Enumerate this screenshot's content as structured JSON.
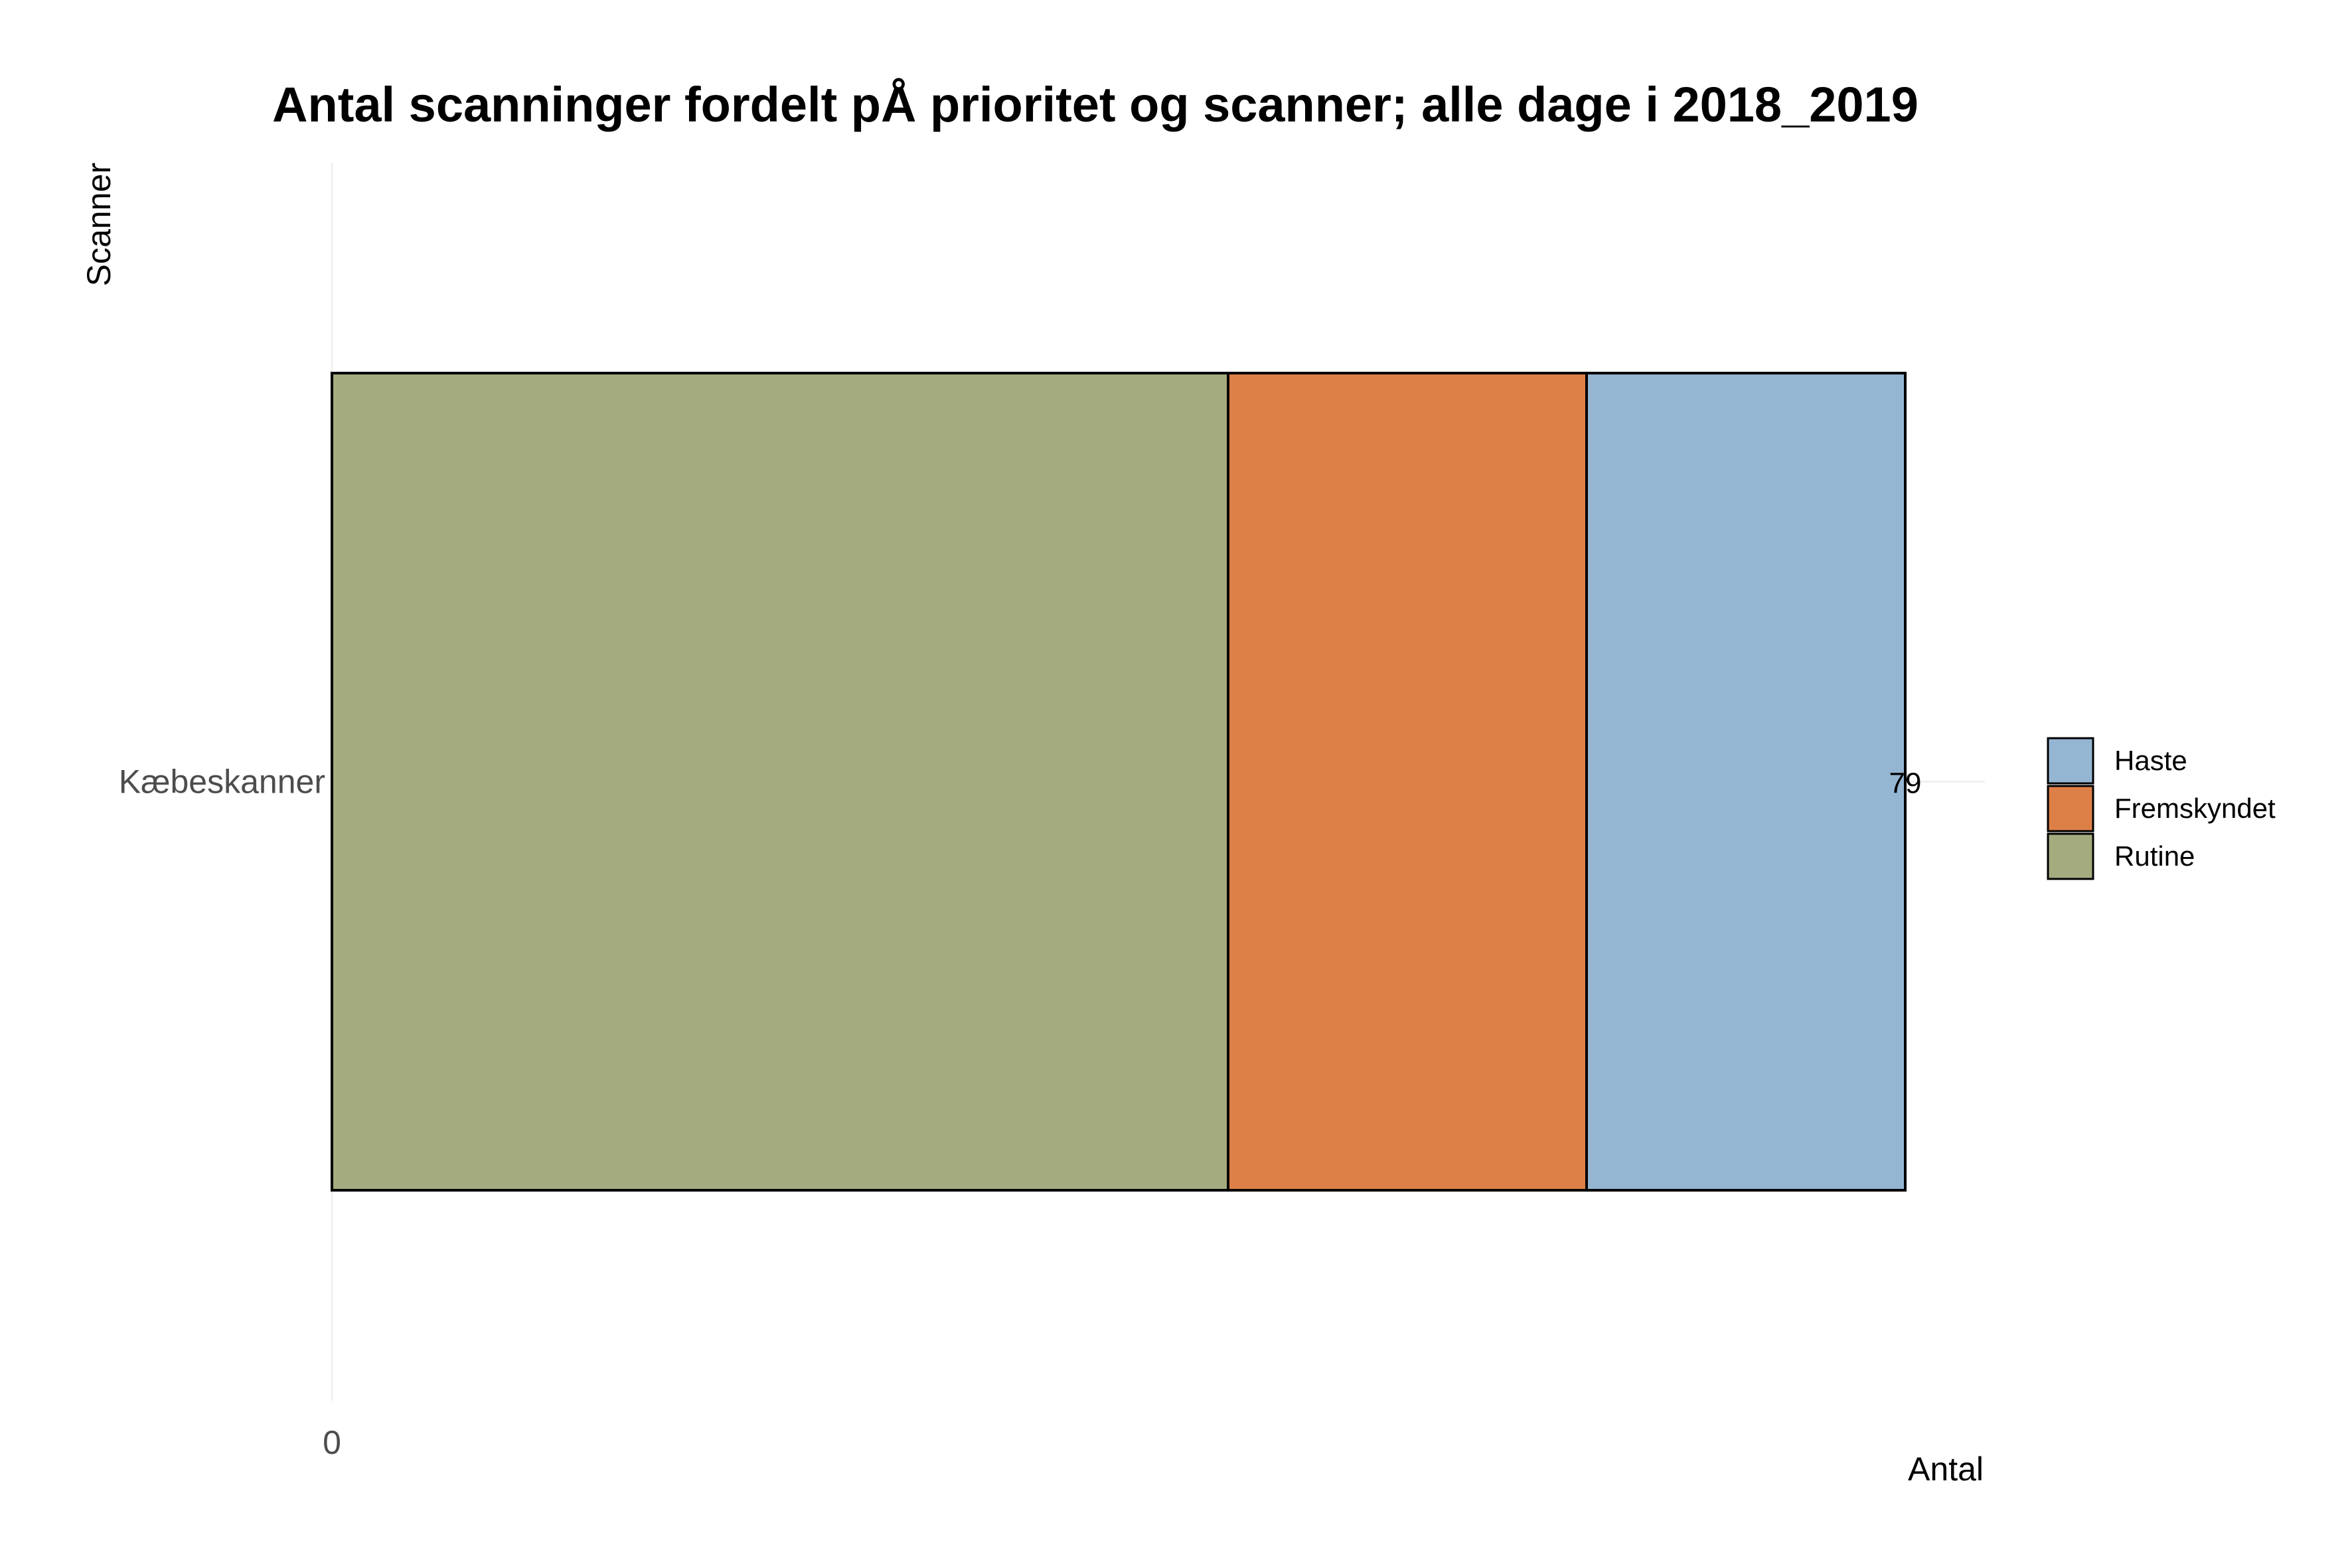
{
  "chart_data": {
    "type": "bar",
    "orientation": "horizontal",
    "stacked": true,
    "title": "Antal scanninger fordelt pÅ prioritet og scanner; alle dage i 2018_2019",
    "xlabel": "Antal",
    "ylabel": "Scanner",
    "categories": [
      "Kæbeskanner"
    ],
    "series": [
      {
        "name": "Rutine",
        "values": [
          45
        ],
        "color": "#a4ab7f"
      },
      {
        "name": "Fremskyndet",
        "values": [
          18
        ],
        "color": "#dd8048"
      },
      {
        "name": "Haste",
        "values": [
          16
        ],
        "color": "#95b6d3"
      }
    ],
    "totals": [
      79
    ],
    "total_labels": [
      "79"
    ],
    "x_ticks": [
      "0"
    ],
    "xlim": [
      0,
      83
    ],
    "legend": {
      "position": "right",
      "order": [
        "Haste",
        "Fremskyndet",
        "Rutine"
      ]
    },
    "grid": true,
    "grid_color": "#ebebeb",
    "bar_outline_color": "#000000"
  }
}
